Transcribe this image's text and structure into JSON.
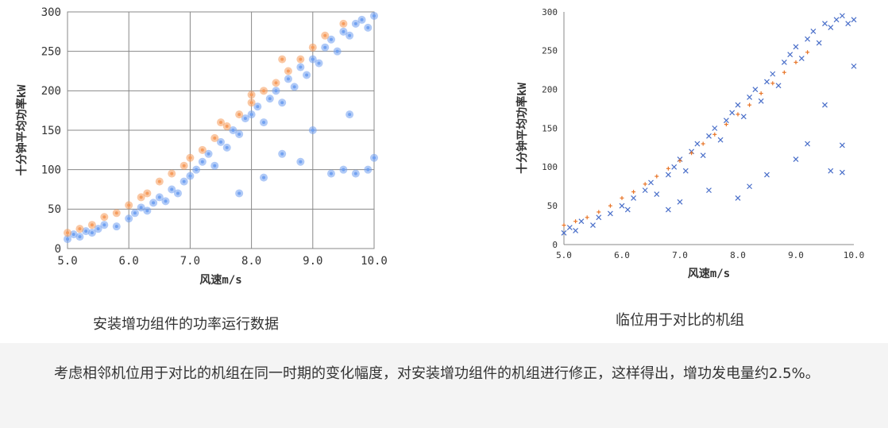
{
  "chart_data": [
    {
      "type": "scatter",
      "xlabel": "风速m/s",
      "ylabel": "十分钟平均功率kW",
      "xlim": [
        5.0,
        10.0
      ],
      "ylim": [
        0,
        300
      ],
      "x_ticks": [
        "5.0",
        "6.0",
        "7.0",
        "8.0",
        "9.0",
        "10.0"
      ],
      "y_ticks": [
        "0",
        "50",
        "100",
        "150",
        "200",
        "250",
        "300"
      ],
      "grid": true,
      "colors": {
        "blue": "#6f9ff0",
        "orange": "#f59a5a"
      },
      "series": [
        {
          "marker": "circle",
          "color": "#6f9ff0",
          "points": [
            [
              5.0,
              12
            ],
            [
              5.1,
              18
            ],
            [
              5.2,
              15
            ],
            [
              5.3,
              22
            ],
            [
              5.4,
              20
            ],
            [
              5.5,
              25
            ],
            [
              5.6,
              30
            ],
            [
              5.8,
              28
            ],
            [
              6.0,
              38
            ],
            [
              6.1,
              45
            ],
            [
              6.2,
              52
            ],
            [
              6.3,
              48
            ],
            [
              6.4,
              58
            ],
            [
              6.5,
              65
            ],
            [
              6.6,
              60
            ],
            [
              6.7,
              75
            ],
            [
              6.8,
              70
            ],
            [
              6.9,
              85
            ],
            [
              7.0,
              92
            ],
            [
              7.1,
              100
            ],
            [
              7.2,
              110
            ],
            [
              7.3,
              120
            ],
            [
              7.4,
              105
            ],
            [
              7.5,
              135
            ],
            [
              7.6,
              128
            ],
            [
              7.7,
              150
            ],
            [
              7.8,
              145
            ],
            [
              7.9,
              165
            ],
            [
              8.0,
              170
            ],
            [
              8.1,
              180
            ],
            [
              8.2,
              160
            ],
            [
              8.3,
              190
            ],
            [
              8.4,
              200
            ],
            [
              8.5,
              185
            ],
            [
              8.6,
              215
            ],
            [
              8.7,
              205
            ],
            [
              8.8,
              230
            ],
            [
              8.9,
              220
            ],
            [
              9.0,
              240
            ],
            [
              9.1,
              235
            ],
            [
              9.2,
              255
            ],
            [
              9.3,
              265
            ],
            [
              9.4,
              250
            ],
            [
              9.5,
              275
            ],
            [
              9.6,
              270
            ],
            [
              9.7,
              285
            ],
            [
              9.8,
              290
            ],
            [
              9.9,
              280
            ],
            [
              10.0,
              295
            ],
            [
              8.8,
              110
            ],
            [
              9.3,
              95
            ],
            [
              9.5,
              100
            ],
            [
              9.7,
              95
            ],
            [
              10.0,
              115
            ],
            [
              9.9,
              100
            ],
            [
              8.2,
              90
            ],
            [
              7.8,
              70
            ],
            [
              8.5,
              120
            ],
            [
              9.0,
              150
            ],
            [
              9.6,
              170
            ]
          ]
        },
        {
          "marker": "circle",
          "color": "#f59a5a",
          "points": [
            [
              5.0,
              20
            ],
            [
              5.2,
              25
            ],
            [
              5.4,
              30
            ],
            [
              5.6,
              40
            ],
            [
              5.8,
              45
            ],
            [
              6.0,
              55
            ],
            [
              6.2,
              65
            ],
            [
              6.3,
              70
            ],
            [
              6.5,
              85
            ],
            [
              6.7,
              95
            ],
            [
              6.9,
              105
            ],
            [
              7.0,
              115
            ],
            [
              7.2,
              125
            ],
            [
              7.4,
              140
            ],
            [
              7.6,
              155
            ],
            [
              7.8,
              170
            ],
            [
              8.0,
              185
            ],
            [
              8.2,
              200
            ],
            [
              8.4,
              210
            ],
            [
              8.6,
              225
            ],
            [
              8.8,
              240
            ],
            [
              9.0,
              255
            ],
            [
              9.2,
              270
            ],
            [
              9.5,
              285
            ],
            [
              8.5,
              240
            ],
            [
              8.0,
              195
            ],
            [
              7.5,
              160
            ]
          ]
        }
      ]
    },
    {
      "type": "scatter",
      "xlabel": "风速m/s",
      "ylabel": "十分钟平均功率kW",
      "xlim": [
        5.0,
        10.0
      ],
      "ylim": [
        0,
        300
      ],
      "x_ticks": [
        "5.0",
        "6.0",
        "7.0",
        "8.0",
        "9.0",
        "10.0"
      ],
      "y_ticks": [
        "0",
        "50",
        "100",
        "150",
        "200",
        "250",
        "300"
      ],
      "grid": false,
      "colors": {
        "blue": "#4a6fc9",
        "orange": "#e8762a"
      },
      "series": [
        {
          "marker": "x",
          "color": "#4a6fc9",
          "points": [
            [
              5.0,
              15
            ],
            [
              5.1,
              22
            ],
            [
              5.2,
              18
            ],
            [
              5.3,
              30
            ],
            [
              5.5,
              25
            ],
            [
              5.6,
              35
            ],
            [
              5.8,
              40
            ],
            [
              6.0,
              50
            ],
            [
              6.1,
              45
            ],
            [
              6.2,
              60
            ],
            [
              6.4,
              70
            ],
            [
              6.5,
              80
            ],
            [
              6.6,
              65
            ],
            [
              6.8,
              90
            ],
            [
              6.9,
              100
            ],
            [
              7.0,
              110
            ],
            [
              7.1,
              95
            ],
            [
              7.2,
              120
            ],
            [
              7.3,
              130
            ],
            [
              7.4,
              115
            ],
            [
              7.5,
              140
            ],
            [
              7.6,
              150
            ],
            [
              7.7,
              135
            ],
            [
              7.8,
              160
            ],
            [
              7.9,
              170
            ],
            [
              8.0,
              180
            ],
            [
              8.1,
              165
            ],
            [
              8.2,
              190
            ],
            [
              8.3,
              200
            ],
            [
              8.4,
              185
            ],
            [
              8.5,
              210
            ],
            [
              8.6,
              220
            ],
            [
              8.7,
              205
            ],
            [
              8.8,
              235
            ],
            [
              8.9,
              245
            ],
            [
              9.0,
              255
            ],
            [
              9.1,
              240
            ],
            [
              9.2,
              265
            ],
            [
              9.3,
              275
            ],
            [
              9.4,
              260
            ],
            [
              9.5,
              285
            ],
            [
              9.6,
              280
            ],
            [
              9.7,
              290
            ],
            [
              9.8,
              295
            ],
            [
              9.9,
              285
            ],
            [
              10.0,
              290
            ],
            [
              8.0,
              60
            ],
            [
              8.2,
              75
            ],
            [
              8.5,
              90
            ],
            [
              9.0,
              110
            ],
            [
              9.2,
              130
            ],
            [
              9.6,
              95
            ],
            [
              9.8,
              93
            ],
            [
              9.8,
              128
            ],
            [
              6.8,
              45
            ],
            [
              7.0,
              55
            ],
            [
              7.5,
              70
            ],
            [
              9.5,
              180
            ],
            [
              10.0,
              230
            ]
          ]
        },
        {
          "marker": "plus",
          "color": "#e8762a",
          "points": [
            [
              5.0,
              25
            ],
            [
              5.2,
              30
            ],
            [
              5.4,
              35
            ],
            [
              5.6,
              42
            ],
            [
              5.8,
              50
            ],
            [
              6.0,
              60
            ],
            [
              6.2,
              68
            ],
            [
              6.4,
              78
            ],
            [
              6.6,
              88
            ],
            [
              6.8,
              98
            ],
            [
              7.0,
              108
            ],
            [
              7.2,
              118
            ],
            [
              7.4,
              130
            ],
            [
              7.6,
              142
            ],
            [
              7.8,
              155
            ],
            [
              8.0,
              168
            ],
            [
              8.2,
              180
            ],
            [
              8.4,
              195
            ],
            [
              8.6,
              208
            ],
            [
              8.8,
              222
            ],
            [
              9.0,
              235
            ],
            [
              9.2,
              248
            ]
          ]
        }
      ]
    }
  ],
  "captions": {
    "left": "安装增功组件的功率运行数据",
    "right": "临位用于对比的机组"
  },
  "note": "考虑相邻机位用于对比的机组在同一时期的变化幅度，对安装增功组件的机组进行修正，这样得出，增功发电量约2.5%。"
}
